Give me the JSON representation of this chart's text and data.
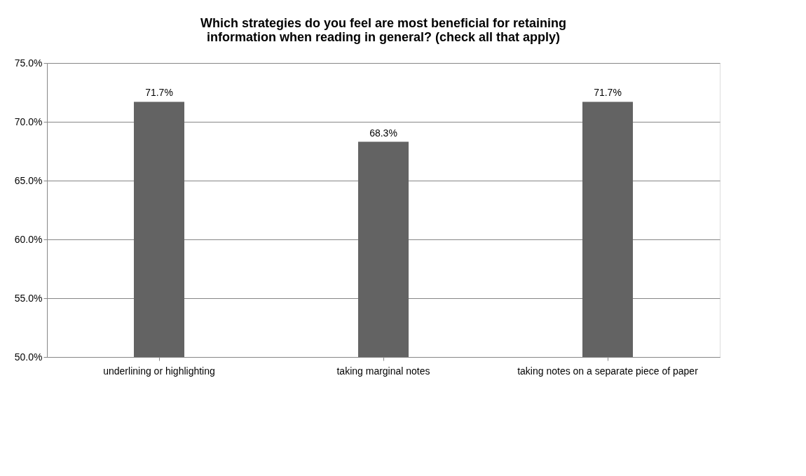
{
  "chart_data": {
    "type": "bar",
    "title": "Which strategies do you feel are most beneficial for retaining information when reading in general? (check all that apply)",
    "categories": [
      "underlining or highlighting",
      "taking marginal notes",
      "taking notes on a separate piece of paper"
    ],
    "values": [
      71.7,
      68.3,
      71.7
    ],
    "value_labels": [
      "71.7%",
      "68.3%",
      "71.7%"
    ],
    "color": "#636363",
    "ylim": [
      50,
      75
    ],
    "yticks": [
      {
        "value": 50,
        "label": "50.0%"
      },
      {
        "value": 55,
        "label": "55.0%"
      },
      {
        "value": 60,
        "label": "60.0%"
      },
      {
        "value": 65,
        "label": "65.0%"
      },
      {
        "value": 70,
        "label": "70.0%"
      },
      {
        "value": 75,
        "label": "75.0%"
      }
    ],
    "grid": "y"
  }
}
